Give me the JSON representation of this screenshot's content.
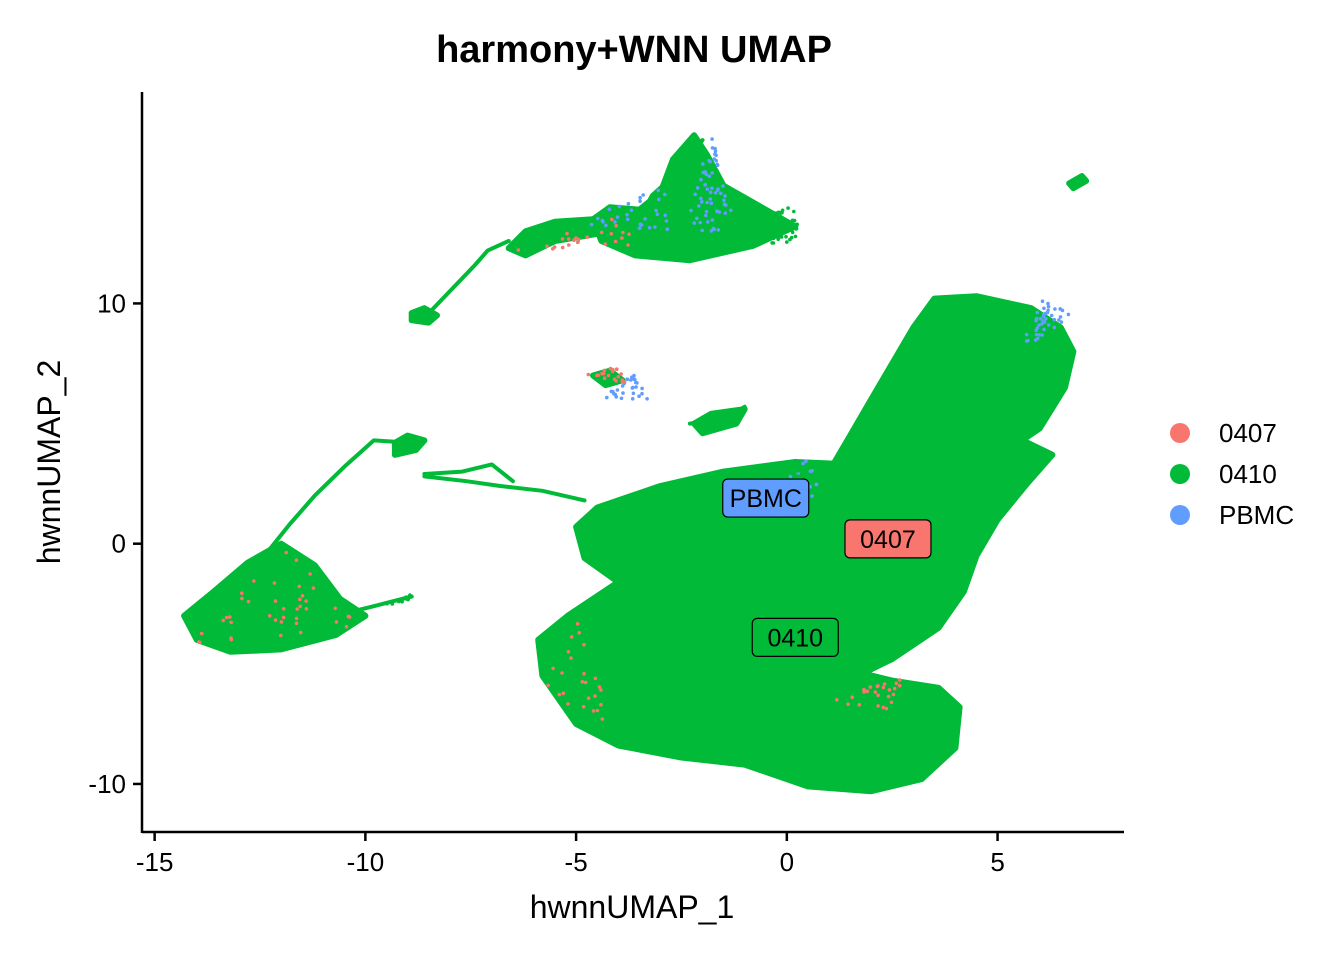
{
  "chart_data": {
    "type": "scatter",
    "title": "harmony+WNN UMAP",
    "xlabel": "hwnnUMAP_1",
    "ylabel": "hwnnUMAP_2",
    "xlim": [
      -15.3,
      8.0
    ],
    "ylim": [
      -12.0,
      18.8
    ],
    "x_ticks": [
      -15,
      -10,
      -5,
      0,
      5
    ],
    "x_tick_labels": [
      "-15",
      "-10",
      "-5",
      "0",
      "5"
    ],
    "y_ticks": [
      -10,
      0,
      10
    ],
    "y_tick_labels": [
      "-10",
      "0",
      "10"
    ],
    "grid": false,
    "legend_position": "right",
    "series": [
      {
        "name": "0407",
        "color": "#F8766D"
      },
      {
        "name": "0410",
        "color": "#00BA38"
      },
      {
        "name": "PBMC",
        "color": "#619CFF"
      }
    ],
    "cluster_labels": [
      {
        "text": "PBMC",
        "x": -0.5,
        "y": 1.9,
        "color": "#619CFF"
      },
      {
        "text": "0407",
        "x": 2.4,
        "y": 0.2,
        "color": "#F8766D"
      },
      {
        "text": "0410",
        "x": 0.2,
        "y": -3.9,
        "color": "#00BA38"
      }
    ],
    "regions": [
      {
        "name": "main-upper",
        "color": "#00BA38",
        "polygon": [
          [
            1.0,
            3.0
          ],
          [
            1.5,
            4.5
          ],
          [
            2.0,
            6.0
          ],
          [
            2.5,
            7.5
          ],
          [
            3.0,
            9.0
          ],
          [
            3.5,
            10.2
          ],
          [
            4.5,
            10.3
          ],
          [
            5.8,
            9.8
          ],
          [
            6.5,
            9.0
          ],
          [
            6.8,
            8.0
          ],
          [
            6.6,
            6.5
          ],
          [
            6.0,
            4.8
          ],
          [
            5.5,
            4.2
          ],
          [
            4.2,
            3.5
          ],
          [
            3.5,
            2.5
          ],
          [
            2.5,
            1.8
          ],
          [
            1.5,
            2.0
          ]
        ]
      },
      {
        "name": "main-lower",
        "color": "#00BA38",
        "polygon": [
          [
            -4.5,
            1.5
          ],
          [
            -3.0,
            2.4
          ],
          [
            -1.5,
            3.0
          ],
          [
            0.2,
            3.4
          ],
          [
            1.5,
            3.3
          ],
          [
            2.8,
            3.8
          ],
          [
            4.3,
            4.0
          ],
          [
            5.6,
            4.3
          ],
          [
            6.3,
            3.7
          ],
          [
            5.7,
            2.5
          ],
          [
            5.0,
            1.0
          ],
          [
            4.5,
            -0.5
          ],
          [
            4.2,
            -2.0
          ],
          [
            3.6,
            -3.5
          ],
          [
            2.5,
            -4.8
          ],
          [
            1.8,
            -5.4
          ],
          [
            2.5,
            -5.7
          ],
          [
            3.6,
            -6.0
          ],
          [
            4.1,
            -6.8
          ],
          [
            4.0,
            -8.5
          ],
          [
            3.2,
            -9.8
          ],
          [
            2.0,
            -10.3
          ],
          [
            0.5,
            -10.1
          ],
          [
            -1.0,
            -9.2
          ],
          [
            -2.5,
            -8.9
          ],
          [
            -4.0,
            -8.4
          ],
          [
            -5.0,
            -7.5
          ],
          [
            -5.8,
            -5.5
          ],
          [
            -5.9,
            -4.0
          ],
          [
            -5.2,
            -3.0
          ],
          [
            -4.0,
            -1.6
          ],
          [
            -4.8,
            -0.6
          ],
          [
            -5.0,
            0.7
          ]
        ]
      },
      {
        "name": "left-blob",
        "color": "#00BA38",
        "polygon": [
          [
            -14.3,
            -3.0
          ],
          [
            -13.6,
            -2.0
          ],
          [
            -12.8,
            -0.8
          ],
          [
            -12.0,
            0.0
          ],
          [
            -11.2,
            -0.9
          ],
          [
            -10.6,
            -2.3
          ],
          [
            -10.0,
            -3.0
          ],
          [
            -10.7,
            -3.8
          ],
          [
            -12.0,
            -4.4
          ],
          [
            -13.2,
            -4.5
          ],
          [
            -14.0,
            -4.0
          ]
        ]
      },
      {
        "name": "top-right-blob",
        "color": "#00BA38",
        "polygon": [
          [
            -4.6,
            13.5
          ],
          [
            -4.2,
            14.0
          ],
          [
            -3.5,
            13.9
          ],
          [
            -3.0,
            14.6
          ],
          [
            -2.7,
            16.0
          ],
          [
            -2.2,
            17.0
          ],
          [
            -1.9,
            16.2
          ],
          [
            -1.5,
            14.9
          ],
          [
            -0.5,
            13.9
          ],
          [
            0.2,
            13.2
          ],
          [
            -0.8,
            12.4
          ],
          [
            -2.3,
            11.8
          ],
          [
            -3.6,
            12.0
          ],
          [
            -4.4,
            12.6
          ]
        ]
      },
      {
        "name": "top-left-arm",
        "color": "#00BA38",
        "polygon": [
          [
            -6.6,
            12.3
          ],
          [
            -6.2,
            13.0
          ],
          [
            -5.5,
            13.4
          ],
          [
            -4.6,
            13.5
          ],
          [
            -4.5,
            12.9
          ],
          [
            -5.5,
            12.6
          ],
          [
            -6.2,
            12.0
          ]
        ]
      },
      {
        "name": "mid-left-blob",
        "color": "#00BA38",
        "polygon": [
          [
            -9.3,
            4.2
          ],
          [
            -9.0,
            4.5
          ],
          [
            -8.6,
            4.3
          ],
          [
            -8.8,
            3.9
          ],
          [
            -9.3,
            3.7
          ]
        ]
      },
      {
        "name": "small-upper-left",
        "color": "#00BA38",
        "polygon": [
          [
            -8.9,
            9.6
          ],
          [
            -8.6,
            9.8
          ],
          [
            -8.3,
            9.5
          ],
          [
            -8.5,
            9.2
          ],
          [
            -8.9,
            9.3
          ]
        ]
      },
      {
        "name": "small-mid",
        "color": "#00BA38",
        "polygon": [
          [
            -4.6,
            7.0
          ],
          [
            -4.2,
            7.2
          ],
          [
            -3.9,
            6.8
          ],
          [
            -4.3,
            6.6
          ]
        ]
      },
      {
        "name": "small-mid-right",
        "color": "#00BA38",
        "polygon": [
          [
            -2.2,
            5.0
          ],
          [
            -1.8,
            5.4
          ],
          [
            -1.0,
            5.6
          ],
          [
            -1.2,
            5.0
          ],
          [
            -2.0,
            4.6
          ]
        ]
      },
      {
        "name": "far-right-speck",
        "color": "#00BA38",
        "polygon": [
          [
            6.7,
            15.0
          ],
          [
            7.0,
            15.3
          ],
          [
            7.1,
            15.1
          ],
          [
            6.8,
            14.8
          ]
        ]
      }
    ],
    "strands": [
      {
        "color": "#00BA38",
        "points": [
          [
            -12.3,
            -0.3
          ],
          [
            -11.8,
            0.8
          ],
          [
            -11.2,
            2.0
          ],
          [
            -10.5,
            3.2
          ],
          [
            -9.8,
            4.3
          ],
          [
            -8.9,
            4.2
          ]
        ]
      },
      {
        "color": "#00BA38",
        "points": [
          [
            -8.6,
            9.4
          ],
          [
            -8.0,
            10.5
          ],
          [
            -7.4,
            11.6
          ],
          [
            -7.1,
            12.2
          ],
          [
            -6.6,
            12.6
          ]
        ]
      },
      {
        "color": "#00BA38",
        "points": [
          [
            -8.6,
            2.8
          ],
          [
            -7.6,
            2.6
          ],
          [
            -6.8,
            2.4
          ],
          [
            -5.8,
            2.2
          ],
          [
            -4.8,
            1.8
          ]
        ]
      },
      {
        "color": "#00BA38",
        "points": [
          [
            -8.6,
            2.9
          ],
          [
            -7.7,
            3.0
          ],
          [
            -7.0,
            3.3
          ],
          [
            -6.5,
            2.6
          ]
        ]
      },
      {
        "color": "#00BA38",
        "points": [
          [
            -10.5,
            -2.9
          ],
          [
            -9.8,
            -2.6
          ],
          [
            -8.9,
            -2.2
          ]
        ]
      },
      {
        "color": "#00BA38",
        "points": [
          [
            -3.5,
            13.5
          ],
          [
            -3.2,
            14.5
          ],
          [
            -2.5,
            15.6
          ],
          [
            -2.0,
            16.8
          ]
        ]
      },
      {
        "color": "#00BA38",
        "points": [
          [
            -1.0,
            5.7
          ],
          [
            -1.5,
            5.2
          ],
          [
            -2.3,
            5.0
          ]
        ]
      }
    ],
    "speckles": [
      {
        "color": "#619CFF",
        "area": [
          [
            -2.4,
            13.0
          ],
          [
            -1.8,
            17.2
          ],
          [
            -1.2,
            13.0
          ]
        ],
        "count": 60
      },
      {
        "color": "#619CFF",
        "area": [
          [
            5.5,
            8.0
          ],
          [
            6.8,
            9.5
          ],
          [
            6.0,
            10.2
          ]
        ],
        "count": 40
      },
      {
        "color": "#619CFF",
        "area": [
          [
            -4.4,
            6.0
          ],
          [
            -3.6,
            7.2
          ],
          [
            -3.3,
            6.0
          ]
        ],
        "count": 30
      },
      {
        "color": "#619CFF",
        "area": [
          [
            -1.0,
            2.0
          ],
          [
            0.5,
            3.5
          ],
          [
            1.0,
            1.5
          ]
        ],
        "count": 35
      },
      {
        "color": "#619CFF",
        "area": [
          [
            -5.0,
            13.3
          ],
          [
            -3.0,
            15.0
          ],
          [
            -2.5,
            13.0
          ]
        ],
        "count": 30
      },
      {
        "color": "#F8766D",
        "area": [
          [
            -14.3,
            -4.5
          ],
          [
            -12.0,
            0.0
          ],
          [
            -10.0,
            -3.5
          ]
        ],
        "count": 40
      },
      {
        "color": "#F8766D",
        "area": [
          [
            0.8,
            -6.5
          ],
          [
            3.0,
            -5.5
          ],
          [
            2.5,
            -7.0
          ]
        ],
        "count": 25
      },
      {
        "color": "#F8766D",
        "area": [
          [
            -4.8,
            7.0
          ],
          [
            -4.0,
            7.4
          ],
          [
            -3.8,
            6.6
          ]
        ],
        "count": 20
      },
      {
        "color": "#F8766D",
        "area": [
          [
            -6.5,
            12.2
          ],
          [
            -4.0,
            13.6
          ],
          [
            -3.5,
            12.4
          ]
        ],
        "count": 25
      },
      {
        "color": "#F8766D",
        "area": [
          [
            -5.9,
            -6.0
          ],
          [
            -5.0,
            -3.0
          ],
          [
            -4.0,
            -8.0
          ]
        ],
        "count": 25
      },
      {
        "color": "#00BA38",
        "area": [
          [
            -2.5,
            0.0
          ],
          [
            0.5,
            3.5
          ],
          [
            0.0,
            -1.0
          ]
        ],
        "count": 220
      },
      {
        "color": "#00BA38",
        "area": [
          [
            -2.5,
            -0.3
          ],
          [
            -1.5,
            1.8
          ],
          [
            -0.5,
            -0.8
          ]
        ],
        "count": 100
      },
      {
        "color": "#00BA38",
        "area": [
          [
            -1.5,
            12.3
          ],
          [
            0.2,
            14.3
          ],
          [
            0.3,
            12.6
          ]
        ],
        "count": 60
      },
      {
        "color": "#00BA38",
        "area": [
          [
            -9.0,
            -2.4
          ],
          [
            -9.8,
            -2.7
          ],
          [
            -8.9,
            -2.0
          ]
        ],
        "count": 15
      }
    ]
  }
}
